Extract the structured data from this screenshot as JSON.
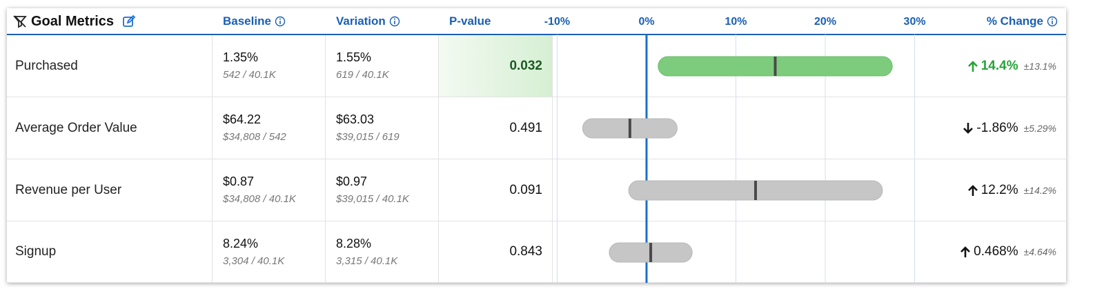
{
  "header": {
    "title": "Goal Metrics",
    "columns": [
      "Baseline",
      "Variation",
      "P-value",
      "% Change"
    ]
  },
  "axis": {
    "xlim": [
      -10.5,
      31.5
    ],
    "xticks": [
      {
        "value": -10,
        "label": "-10%"
      },
      {
        "value": 0,
        "label": "0%"
      },
      {
        "value": 10,
        "label": "10%"
      },
      {
        "value": 20,
        "label": "20%"
      },
      {
        "value": 30,
        "label": "30%"
      }
    ]
  },
  "rows": [
    {
      "metric": "Purchased",
      "baseline": {
        "value": "1.35%",
        "detail": "542 / 40.1K"
      },
      "variation": {
        "value": "1.55%",
        "detail": "619 / 40.1K"
      },
      "p_value": 0.032,
      "change": {
        "value": 14.4,
        "label": "14.4%"
      },
      "ci": {
        "value": 13.1,
        "label": "±13.1%"
      },
      "significant": true
    },
    {
      "metric": "Average Order Value",
      "baseline": {
        "value": "$64.22",
        "detail": "$34,808 / 542"
      },
      "variation": {
        "value": "$63.03",
        "detail": "$39,015 / 619"
      },
      "p_value": 0.491,
      "change": {
        "value": -1.86,
        "label": "-1.86%"
      },
      "ci": {
        "value": 5.29,
        "label": "±5.29%"
      },
      "significant": false
    },
    {
      "metric": "Revenue per User",
      "baseline": {
        "value": "$0.87",
        "detail": "$34,808 / 40.1K"
      },
      "variation": {
        "value": "$0.97",
        "detail": "$39,015 / 40.1K"
      },
      "p_value": 0.091,
      "change": {
        "value": 12.2,
        "label": "12.2%"
      },
      "ci": {
        "value": 14.2,
        "label": "±14.2%"
      },
      "significant": false
    },
    {
      "metric": "Signup",
      "baseline": {
        "value": "8.24%",
        "detail": "3,304 / 40.1K"
      },
      "variation": {
        "value": "8.28%",
        "detail": "3,315 / 40.1K"
      },
      "p_value": 0.843,
      "change": {
        "value": 0.468,
        "label": "0.468%"
      },
      "ci": {
        "value": 4.64,
        "label": "±4.64%"
      },
      "significant": false
    }
  ]
}
